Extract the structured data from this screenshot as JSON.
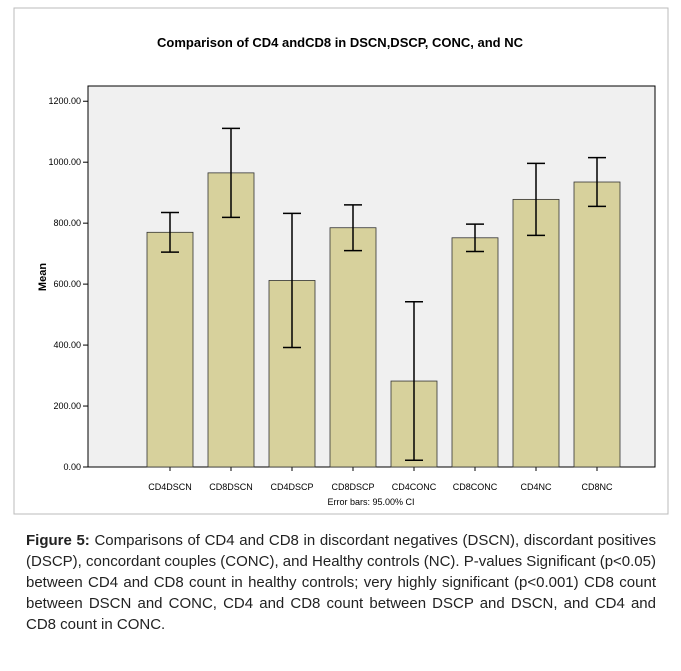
{
  "chart_data": {
    "type": "bar",
    "title": "Comparison of CD4 andCD8 in DSCN,DSCP, CONC, and NC",
    "y_label": "Mean",
    "note": "Error bars: 95.00% CI",
    "categories": [
      "CD4DSCN",
      "CD8DSCN",
      "CD4DSCP",
      "CD8DSCP",
      "CD4CONC",
      "CD8CONC",
      "CD4NC",
      "CD8NC"
    ],
    "values": [
      770,
      965,
      612,
      785,
      282,
      752,
      878,
      935
    ],
    "errors": [
      65,
      146,
      220,
      75,
      260,
      45,
      118,
      80
    ],
    "color": "#d7d19c",
    "ylim": [
      0,
      1250
    ],
    "yticks": [
      {
        "value": 0,
        "label": "0.00"
      },
      {
        "value": 200,
        "label": "200.00"
      },
      {
        "value": 400,
        "label": "400.00"
      },
      {
        "value": 600,
        "label": "600.00"
      },
      {
        "value": 800,
        "label": "800.00"
      },
      {
        "value": 1000,
        "label": "1000.00"
      },
      {
        "value": 1200,
        "label": "1200.00"
      }
    ]
  },
  "caption": {
    "label": "Figure 5:",
    "text": "Comparisons of CD4 and CD8 in discordant negatives (DSCN), discordant positives (DSCP), concordant couples (CONC), and Healthy controls (NC). P-values Significant (p<0.05) between CD4 and CD8 count in healthy controls; very highly significant (p<0.001) CD8 count between DSCN and CONC, CD4 and CD8 count between DSCP and DSCN, and CD4 and CD8 count in CONC."
  }
}
